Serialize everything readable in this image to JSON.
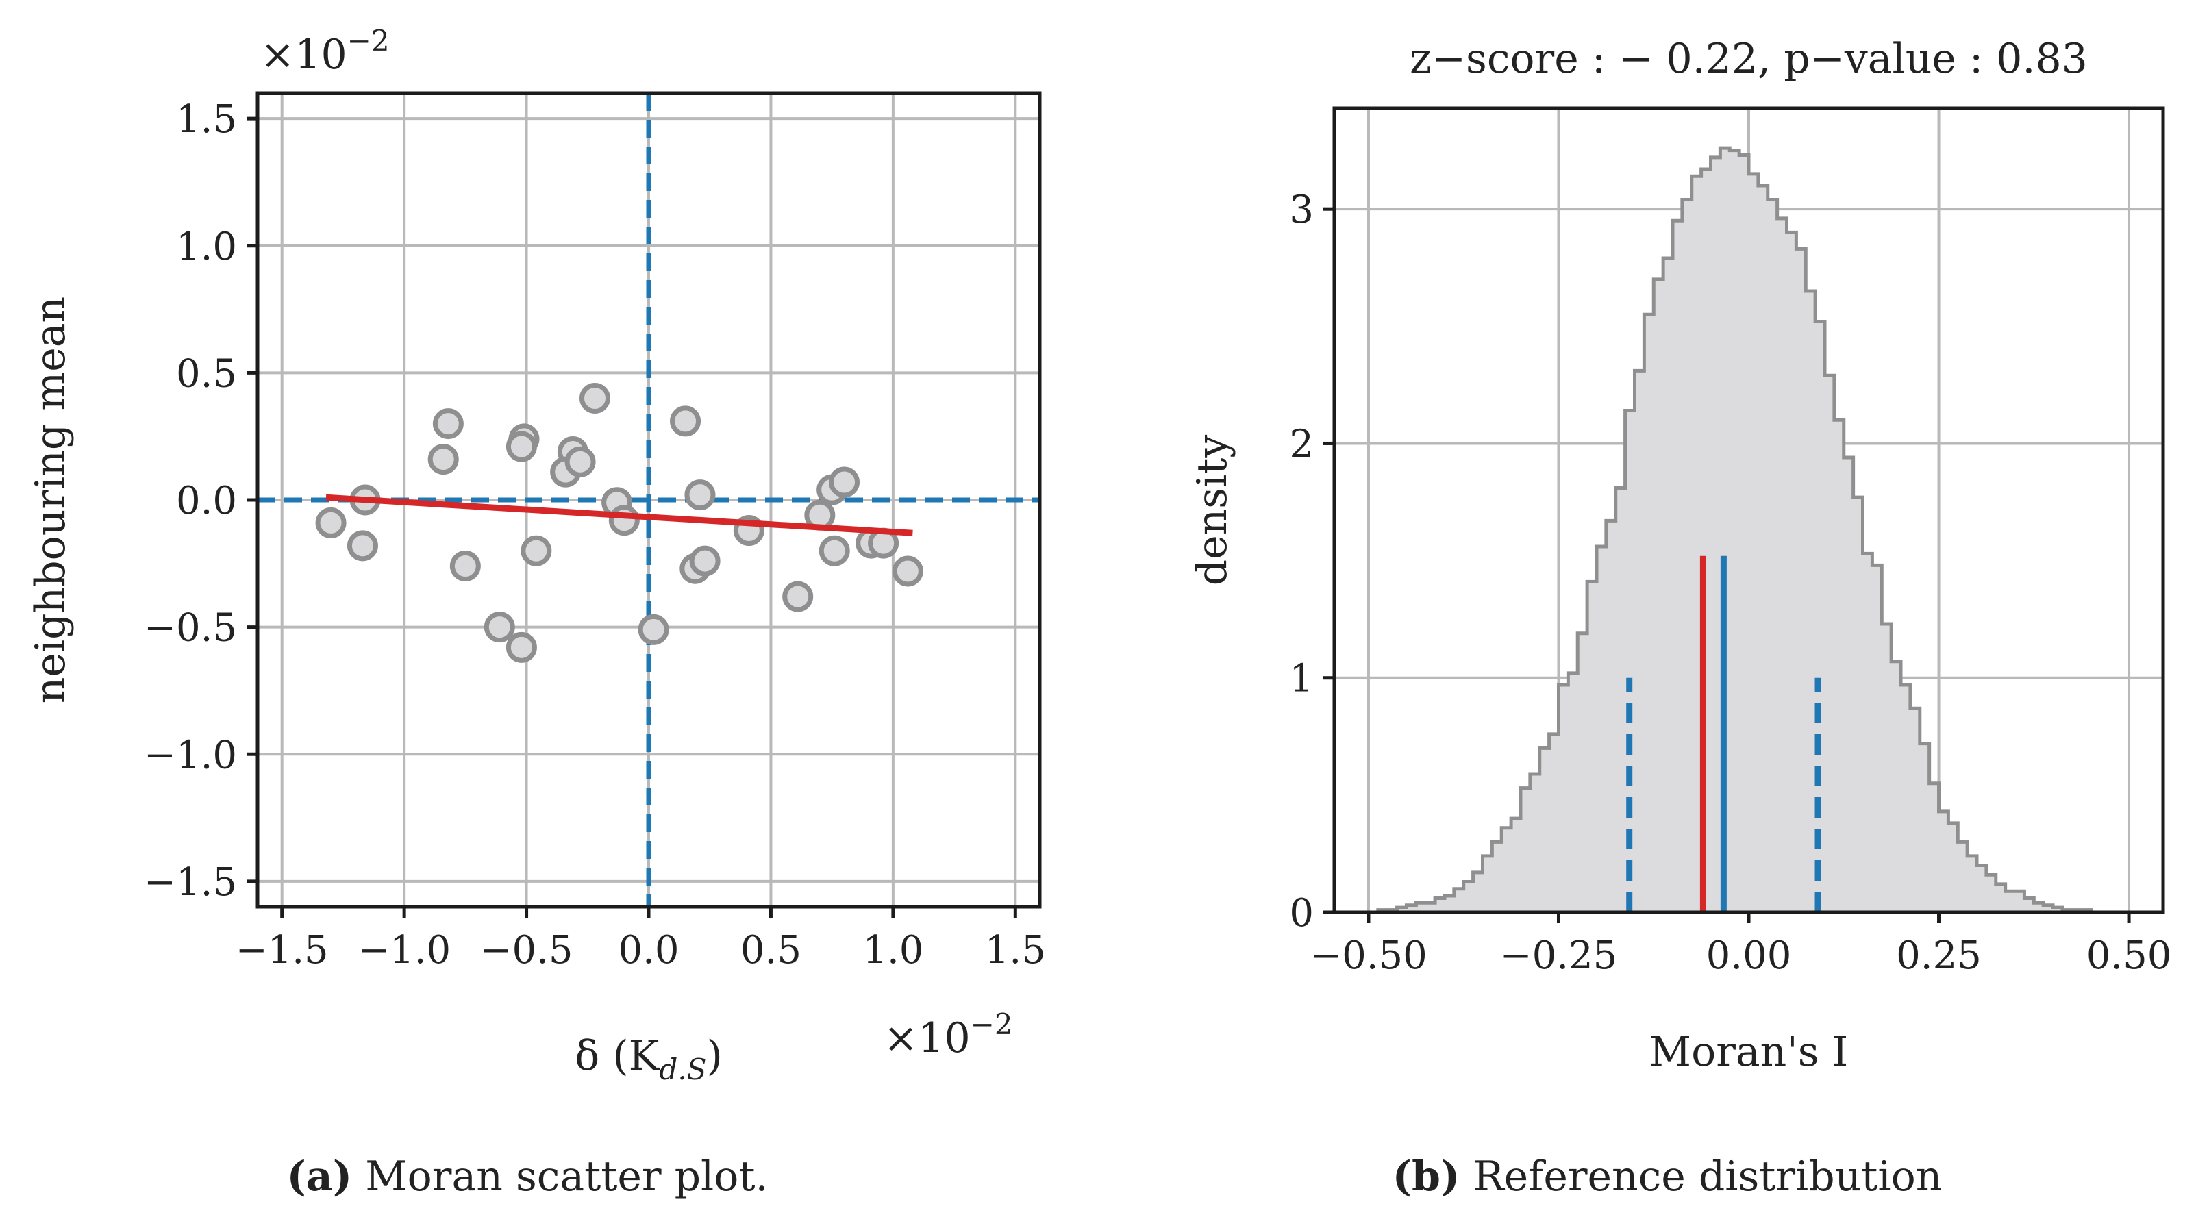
{
  "chart_data": [
    {
      "type": "scatter",
      "panel_label": "a",
      "caption": "Moran scatter plot.",
      "xlabel": "δ (K",
      "xlabel_sub": "d.S",
      "xlabel_close": ")",
      "ylabel": "neighbouring mean",
      "x_multiplier": "×10",
      "y_multiplier": "×10",
      "multiplier_exp": "−2",
      "xlim": [
        -1.6,
        1.6
      ],
      "ylim": [
        -1.6,
        1.6
      ],
      "xticks": [
        -1.5,
        -1.0,
        -0.5,
        0.0,
        0.5,
        1.0,
        1.5
      ],
      "yticks": [
        -1.5,
        -1.0,
        -0.5,
        0.0,
        0.5,
        1.0,
        1.5
      ],
      "xtick_labels": [
        "−1.5",
        "−1.0",
        "−0.5",
        "0.0",
        "0.5",
        "1.0",
        "1.5"
      ],
      "ytick_labels": [
        "−1.5",
        "−1.0",
        "−0.5",
        "0.0",
        "0.5",
        "1.0",
        "1.5"
      ],
      "points": [
        {
          "x": -1.3,
          "y": -0.09
        },
        {
          "x": -1.16,
          "y": 0.0
        },
        {
          "x": -1.17,
          "y": -0.18
        },
        {
          "x": -0.82,
          "y": 0.3
        },
        {
          "x": -0.84,
          "y": 0.16
        },
        {
          "x": -0.75,
          "y": -0.26
        },
        {
          "x": -0.61,
          "y": -0.5
        },
        {
          "x": -0.52,
          "y": -0.58
        },
        {
          "x": -0.51,
          "y": 0.24
        },
        {
          "x": -0.52,
          "y": 0.21
        },
        {
          "x": -0.46,
          "y": -0.2
        },
        {
          "x": -0.31,
          "y": 0.19
        },
        {
          "x": -0.34,
          "y": 0.11
        },
        {
          "x": -0.28,
          "y": 0.15
        },
        {
          "x": -0.22,
          "y": 0.4
        },
        {
          "x": -0.13,
          "y": -0.01
        },
        {
          "x": -0.1,
          "y": -0.08
        },
        {
          "x": 0.02,
          "y": -0.51
        },
        {
          "x": 0.15,
          "y": 0.31
        },
        {
          "x": 0.21,
          "y": 0.02
        },
        {
          "x": 0.19,
          "y": -0.27
        },
        {
          "x": 0.23,
          "y": -0.24
        },
        {
          "x": 0.41,
          "y": -0.12
        },
        {
          "x": 0.61,
          "y": -0.38
        },
        {
          "x": 0.7,
          "y": -0.06
        },
        {
          "x": 0.75,
          "y": 0.04
        },
        {
          "x": 0.8,
          "y": 0.07
        },
        {
          "x": 0.76,
          "y": -0.2
        },
        {
          "x": 0.91,
          "y": -0.17
        },
        {
          "x": 0.96,
          "y": -0.17
        },
        {
          "x": 1.06,
          "y": -0.28
        }
      ],
      "regression": {
        "x": [
          -1.32,
          1.08
        ],
        "y": [
          0.01,
          -0.13
        ]
      },
      "reference_lines": {
        "x": 0.0,
        "y": 0.0
      },
      "colors": {
        "points_face": "#d9d9db",
        "points_edge": "#8f8f8f",
        "regression": "#d62728",
        "reference": "#1f77b4"
      }
    },
    {
      "type": "histogram",
      "panel_label": "b",
      "caption": "Reference distribution",
      "title": "z−score : − 0.22,  p−value : 0.83",
      "xlabel": "Moran's I",
      "ylabel": "density",
      "xlim": [
        -0.545,
        0.545
      ],
      "ylim": [
        0,
        3.43
      ],
      "xticks": [
        -0.5,
        -0.25,
        0.0,
        0.25,
        0.5
      ],
      "xtick_labels": [
        "−0.50",
        "−0.25",
        "0.00",
        "0.25",
        "0.50"
      ],
      "yticks": [
        0,
        1,
        2,
        3
      ],
      "ytick_labels": [
        "0",
        "1",
        "2",
        "3"
      ],
      "bin_start": -0.5,
      "bin_width": 0.0125,
      "densities": [
        0.0,
        0.01,
        0.01,
        0.02,
        0.03,
        0.04,
        0.04,
        0.06,
        0.07,
        0.1,
        0.13,
        0.17,
        0.24,
        0.3,
        0.36,
        0.4,
        0.53,
        0.59,
        0.7,
        0.76,
        0.97,
        1.02,
        1.19,
        1.41,
        1.56,
        1.67,
        1.81,
        2.14,
        2.31,
        2.55,
        2.7,
        2.79,
        2.95,
        3.04,
        3.14,
        3.17,
        3.22,
        3.26,
        3.25,
        3.23,
        3.15,
        3.1,
        3.04,
        2.96,
        2.9,
        2.83,
        2.65,
        2.52,
        2.29,
        2.1,
        1.94,
        1.77,
        1.53,
        1.48,
        1.23,
        1.07,
        0.97,
        0.87,
        0.72,
        0.55,
        0.43,
        0.38,
        0.3,
        0.24,
        0.2,
        0.16,
        0.12,
        0.09,
        0.09,
        0.06,
        0.04,
        0.03,
        0.02,
        0.01,
        0.01,
        0.01,
        0.0,
        0.0,
        0.0,
        0.0
      ],
      "markers": [
        {
          "name": "observed",
          "x": -0.06,
          "height": 1.52,
          "style": "solid",
          "color": "#d62728"
        },
        {
          "name": "expected",
          "x": -0.033,
          "height": 1.52,
          "style": "solid",
          "color": "#1f77b4"
        },
        {
          "name": "lower-bound",
          "x": -0.157,
          "height": 1.0,
          "style": "dashed",
          "color": "#1f77b4"
        },
        {
          "name": "upper-bound",
          "x": 0.091,
          "height": 1.0,
          "style": "dashed",
          "color": "#1f77b4"
        }
      ],
      "colors": {
        "fill": "#dcdcde",
        "edge": "#8f8f8f"
      }
    }
  ]
}
